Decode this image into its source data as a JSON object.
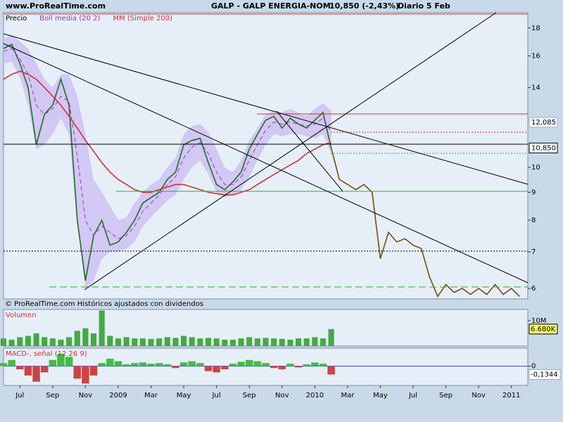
{
  "header": {
    "site": "www.ProRealTime.com",
    "title": "GALP - GALP ENERGIA-NOM",
    "quote": "10,850 (-2,43%)",
    "period": "Diario  5 Feb"
  },
  "chart_data": [
    {
      "type": "line",
      "log_scale": true,
      "footnote": "© ProRealTime.com Históricos ajustados con dividendos",
      "categories": [
        null,
        null,
        "Jul",
        null,
        null,
        null,
        "Sep",
        null,
        null,
        null,
        "Nov",
        null,
        null,
        null,
        "2009",
        null,
        null,
        null,
        "Mar",
        null,
        null,
        null,
        "May",
        null,
        null,
        null,
        "Jul",
        null,
        null,
        null,
        "Sep",
        null,
        null,
        null,
        "Nov",
        null,
        null,
        null,
        "2010",
        null,
        null,
        null,
        "Mar",
        null,
        null,
        null,
        "May",
        null,
        null,
        null,
        "Jul",
        null,
        null,
        null,
        "Sep",
        null,
        null,
        null,
        "Nov",
        null,
        null,
        null,
        "2011",
        null
      ],
      "ylim": [
        5.74,
        19.2
      ],
      "yticks": [
        6,
        7,
        8,
        9,
        10,
        14,
        16,
        18
      ],
      "price_labels": [
        {
          "value": 12.085,
          "label": "12,085"
        },
        {
          "value": 10.85,
          "label": "10,850"
        }
      ],
      "band": {
        "color": "#c9b8f2",
        "upper": [
          17.2,
          17.5,
          17.0,
          16.5,
          15.5,
          14.5,
          14.0,
          14.8,
          14.8,
          13.5,
          11.5,
          9.5,
          9.0,
          8.5,
          8.0,
          8.1,
          8.6,
          9.0,
          9.3,
          9.5,
          10.0,
          10.4,
          11.5,
          11.9,
          12.0,
          11.6,
          10.8,
          10.0,
          9.8,
          10.3,
          11.2,
          11.8,
          12.5,
          12.7,
          12.6,
          12.8,
          12.6,
          12.4,
          12.8,
          13.1,
          12.7,
          null,
          null,
          null,
          null,
          null,
          null,
          null,
          null,
          null,
          null,
          null,
          null,
          null,
          null,
          null,
          null,
          null,
          null,
          null,
          null,
          null,
          null,
          null
        ],
        "lower": [
          15.5,
          15.6,
          14.6,
          13.0,
          10.8,
          11.0,
          11.5,
          12.3,
          11.5,
          8.0,
          6.0,
          6.2,
          6.8,
          7.0,
          7.0,
          7.1,
          7.3,
          7.8,
          8.1,
          8.4,
          8.7,
          8.9,
          9.5,
          10.0,
          10.3,
          9.7,
          9.0,
          8.8,
          8.9,
          9.1,
          9.6,
          10.3,
          11.0,
          11.5,
          11.4,
          11.5,
          11.5,
          11.4,
          11.3,
          11.5,
          10.6,
          null,
          null,
          null,
          null,
          null,
          null,
          null,
          null,
          null,
          null,
          null,
          null,
          null,
          null,
          null,
          null,
          null,
          null,
          null,
          null,
          null,
          null,
          null
        ]
      },
      "series": [
        {
          "name": "Precio",
          "color": "#1e6e1e",
          "values": [
            16.5,
            16.8,
            15.5,
            14.0,
            11.0,
            12.5,
            13.0,
            14.5,
            13.0,
            8.0,
            6.2,
            7.5,
            8.0,
            7.2,
            7.3,
            7.6,
            8.0,
            8.6,
            8.8,
            9.0,
            9.5,
            9.8,
            11.0,
            11.2,
            11.3,
            10.2,
            9.3,
            9.1,
            9.4,
            9.8,
            10.8,
            11.5,
            12.2,
            12.4,
            11.8,
            12.3,
            12.0,
            11.8,
            12.2,
            12.6,
            10.85,
            null,
            null,
            null,
            null,
            null,
            null,
            null,
            null,
            null,
            null,
            null,
            null,
            null,
            null,
            null,
            null,
            null,
            null,
            null,
            null,
            null,
            null,
            null
          ]
        },
        {
          "name": "Boll media (20 2)",
          "color": "#9933cc",
          "dashed": true,
          "values": [
            16.3,
            16.5,
            15.8,
            14.8,
            13.0,
            12.5,
            12.8,
            13.5,
            13.2,
            10.5,
            8.0,
            7.5,
            7.8,
            7.6,
            7.4,
            7.5,
            7.8,
            8.3,
            8.6,
            8.9,
            9.3,
            9.6,
            10.4,
            10.9,
            11.1,
            10.6,
            9.8,
            9.3,
            9.3,
            9.6,
            10.3,
            11.0,
            11.7,
            12.1,
            12.0,
            12.1,
            12.0,
            11.9,
            12.0,
            12.3,
            11.6,
            null,
            null,
            null,
            null,
            null,
            null,
            null,
            null,
            null,
            null,
            null,
            null,
            null,
            null,
            null,
            null,
            null,
            null,
            null,
            null,
            null,
            null,
            null
          ]
        },
        {
          "name": "MM (Simple 200)",
          "color": "#cc3333",
          "values": [
            14.5,
            14.8,
            15.0,
            14.8,
            14.5,
            14.0,
            13.5,
            13.0,
            12.4,
            11.8,
            11.2,
            10.7,
            10.2,
            9.8,
            9.5,
            9.3,
            9.1,
            9.0,
            9.0,
            9.1,
            9.2,
            9.3,
            9.3,
            9.2,
            9.1,
            9.0,
            8.95,
            8.9,
            8.9,
            9.0,
            9.1,
            9.3,
            9.5,
            9.7,
            9.9,
            10.1,
            10.3,
            10.6,
            10.8,
            11.0,
            11.1,
            null,
            null,
            null,
            null,
            null,
            null,
            null,
            null,
            null,
            null,
            null,
            null,
            null,
            null,
            null,
            null,
            null,
            null,
            null,
            null,
            null,
            null,
            null
          ]
        },
        {
          "color": "#7a4a10",
          "values": [
            null,
            null,
            null,
            null,
            null,
            null,
            null,
            null,
            null,
            null,
            null,
            null,
            null,
            null,
            null,
            null,
            null,
            null,
            null,
            null,
            null,
            null,
            null,
            null,
            null,
            null,
            null,
            null,
            null,
            null,
            null,
            null,
            null,
            null,
            null,
            null,
            null,
            null,
            null,
            null,
            10.85,
            9.5,
            9.3,
            9.1,
            9.3,
            9.0,
            6.8,
            7.6,
            7.3,
            7.4,
            7.2,
            7.1,
            6.3,
            5.8,
            6.1,
            5.9,
            6.0,
            5.85,
            6.0,
            5.85,
            6.1,
            5.85,
            6.0,
            5.8
          ]
        }
      ]
    },
    {
      "type": "bar",
      "title": "Volumen",
      "color": "#44aa44",
      "ylim": [
        0,
        14400
      ],
      "yticks": [
        {
          "value": 10000,
          "label": "10M"
        }
      ],
      "last_label": {
        "value": 6680,
        "label": "6.680K"
      },
      "values": [
        3000,
        2500,
        3500,
        4000,
        5000,
        3500,
        3000,
        2500,
        3500,
        6000,
        7000,
        5000,
        14000,
        4000,
        3000,
        3500,
        3000,
        3000,
        2800,
        3000,
        3500,
        3200,
        4000,
        3500,
        3000,
        3200,
        3000,
        2500,
        2500,
        3000,
        3500,
        3000,
        3200,
        3000,
        2800,
        2500,
        3000,
        3000,
        3500,
        3000,
        6680,
        null,
        null,
        null,
        null,
        null,
        null,
        null,
        null,
        null,
        null,
        null,
        null,
        null,
        null,
        null,
        null,
        null,
        null,
        null,
        null,
        null,
        null,
        null
      ]
    },
    {
      "type": "bar",
      "title": "MACD-, señal (12 26 9)",
      "pos_color": "#44bb44",
      "neg_color": "#cc4444",
      "zero_color": "#3344cc",
      "ylim": [
        -0.31,
        0.29
      ],
      "yticks": [
        0
      ],
      "last_label": {
        "value": -0.1344,
        "label": "-0,1344"
      },
      "values": [
        0.05,
        0.1,
        -0.05,
        -0.15,
        -0.25,
        -0.1,
        0.1,
        0.2,
        0.15,
        -0.2,
        -0.28,
        -0.15,
        0.05,
        0.12,
        0.08,
        0.03,
        0.05,
        0.06,
        0.04,
        0.05,
        0.03,
        -0.03,
        0.06,
        0.08,
        0.05,
        -0.08,
        -0.1,
        -0.05,
        0.04,
        0.07,
        0.1,
        0.08,
        0.05,
        -0.03,
        -0.05,
        0.04,
        -0.02,
        0.03,
        0.06,
        0.04,
        -0.1344,
        null,
        null,
        null,
        null,
        null,
        null,
        null,
        null,
        null,
        null,
        null,
        null,
        null,
        null,
        null,
        null,
        null,
        null,
        null,
        null,
        null,
        null,
        null
      ]
    }
  ]
}
